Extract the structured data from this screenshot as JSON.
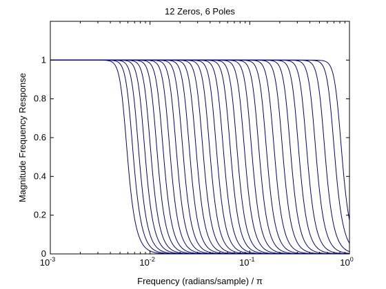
{
  "chart_data": {
    "type": "line",
    "title": "12 Zeros, 6 Poles",
    "xlabel": "Frequency (radians/sample) / π",
    "ylabel": "Magnitude Frequency Response",
    "xscale": "log",
    "xlim": [
      0.001,
      1
    ],
    "ylim": [
      0,
      1.2
    ],
    "grid": false,
    "line_color": "#000080",
    "x_ticks": [
      {
        "base": "10",
        "exp": "-3",
        "value": 0.001
      },
      {
        "base": "10",
        "exp": "-2",
        "value": 0.01
      },
      {
        "base": "10",
        "exp": "-1",
        "value": 0.1
      },
      {
        "base": "10",
        "exp": "0",
        "value": 1
      }
    ],
    "y_ticks": [
      {
        "label": "0",
        "value": 0
      },
      {
        "label": "0.2",
        "value": 0.2
      },
      {
        "label": "0.4",
        "value": 0.4
      },
      {
        "label": "0.6",
        "value": 0.6
      },
      {
        "label": "0.8",
        "value": 0.8
      },
      {
        "label": "1",
        "value": 1
      }
    ],
    "series_shape": {
      "passband": 1,
      "stopband": 0,
      "steepness": 7
    },
    "series_cutoffs": [
      0.0055,
      0.0063,
      0.0072,
      0.0083,
      0.0095,
      0.011,
      0.0127,
      0.0148,
      0.0172,
      0.02,
      0.0233,
      0.0272,
      0.0318,
      0.0372,
      0.0435,
      0.051,
      0.06,
      0.07,
      0.083,
      0.098,
      0.116,
      0.138,
      0.165,
      0.2,
      0.24,
      0.29,
      0.35,
      0.43,
      0.53,
      0.66,
      0.78
    ]
  }
}
